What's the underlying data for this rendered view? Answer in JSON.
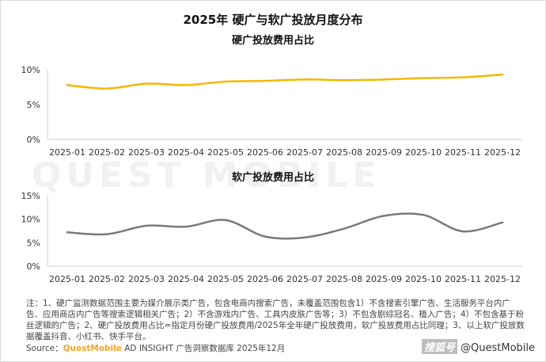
{
  "title": "2025年 硬广与软广投放月度分布",
  "watermark": "QUEST MOBILE",
  "chart_data": [
    {
      "type": "line",
      "title": "硬广投放费用占比",
      "categories": [
        "2025-01",
        "2025-02",
        "2025-03",
        "2025-04",
        "2025-05",
        "2025-06",
        "2025-07",
        "2025-08",
        "2025-09",
        "2025-10",
        "2025-11",
        "2025-12"
      ],
      "values": [
        7.8,
        7.3,
        8.0,
        7.8,
        8.3,
        8.4,
        8.6,
        8.5,
        8.6,
        8.8,
        8.9,
        9.3
      ],
      "ylim": [
        0,
        10
      ],
      "yticks": [
        "0%",
        "5%",
        "10%"
      ],
      "color": "#f5b800",
      "grid": false
    },
    {
      "type": "line",
      "title": "软广投放费用占比",
      "categories": [
        "2025-01",
        "2025-02",
        "2025-03",
        "2025-04",
        "2025-05",
        "2025-06",
        "2025-07",
        "2025-08",
        "2025-09",
        "2025-10",
        "2025-11",
        "2025-12"
      ],
      "values": [
        7.2,
        6.8,
        8.6,
        8.4,
        9.8,
        6.3,
        6.1,
        8.0,
        10.7,
        10.9,
        7.4,
        9.3
      ],
      "ylim": [
        0,
        15
      ],
      "yticks": [
        "0%",
        "5%",
        "10%",
        "15%"
      ],
      "color": "#7a7a7a",
      "grid": false
    }
  ],
  "note": "注：1、硬广监测数据范围主要为媒介展示类广告，包含电商内搜索广告，未覆盖范围包含1）不含搜索引擎广告、生活服务平台内广告、应用商店内广告等搜索逻辑相关广告；2）不含游戏内广告、工具内皮肤广告等；3）不包含剧综冠名、植入广告；4）不包含基于粉丝逻辑的广告；2、硬广投放费用占比=指定月份硬广投放费用/2025年全年硬广投放费用，软广投放费用占比同理；3、以上软广投放数据覆盖抖音、小红书、快手平台。",
  "source": {
    "prefix": "Source：",
    "brand": "QuestMobile",
    "rest": " AD INSIGHT 广告洞察数据库 2025年12月"
  },
  "credit": {
    "badge": "搜狐号",
    "text": "@QuestMobile"
  }
}
